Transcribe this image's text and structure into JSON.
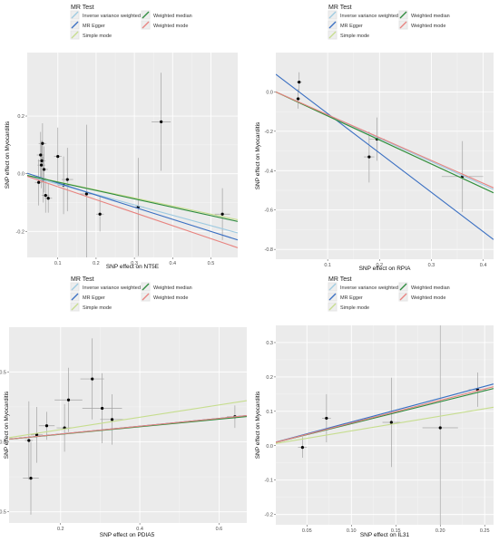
{
  "legend": {
    "title": "MR Test",
    "methods": [
      {
        "key": "ivw",
        "label": "Inverse variance weighted",
        "color": "#9ecae1"
      },
      {
        "key": "egger",
        "label": "MR Egger",
        "color": "#3a6fc2"
      },
      {
        "key": "simple",
        "label": "Simple mode",
        "color": "#c6dd8e"
      },
      {
        "key": "wmedian",
        "label": "Weighted median",
        "color": "#2e8b3e"
      },
      {
        "key": "wmode",
        "label": "Weighted mode",
        "color": "#e8837f"
      }
    ]
  },
  "chart_data": [
    {
      "type": "scatter",
      "xlabel": "SNP effect on NT5E",
      "ylabel": "SNP effect on Myocarditis",
      "xlim": [
        0.02,
        0.57
      ],
      "ylim": [
        -0.29,
        0.42
      ],
      "xticks": [
        {
          "v": 0.1,
          "label": "0.1"
        },
        {
          "v": 0.2,
          "label": "0.2"
        },
        {
          "v": 0.3,
          "label": "0.3"
        },
        {
          "v": 0.4,
          "label": "0.4"
        },
        {
          "v": 0.5,
          "label": "0.5"
        }
      ],
      "yticks": [
        {
          "v": -0.2,
          "label": "-0.2"
        },
        {
          "v": 0.0,
          "label": "0.0"
        },
        {
          "v": 0.2,
          "label": "0.2"
        }
      ],
      "points": [
        {
          "x": 0.05,
          "y": -0.03,
          "xerr": 0.01,
          "yerr": 0.08
        },
        {
          "x": 0.055,
          "y": 0.065,
          "xerr": 0.01,
          "yerr": 0.08
        },
        {
          "x": 0.057,
          "y": 0.03,
          "xerr": 0.01,
          "yerr": 0.08
        },
        {
          "x": 0.058,
          "y": 0.045,
          "xerr": 0.01,
          "yerr": 0.07
        },
        {
          "x": 0.06,
          "y": 0.105,
          "xerr": 0.01,
          "yerr": 0.07
        },
        {
          "x": 0.062,
          "y": -0.02,
          "xerr": 0.01,
          "yerr": 0.08
        },
        {
          "x": 0.064,
          "y": 0.015,
          "xerr": 0.01,
          "yerr": 0.08
        },
        {
          "x": 0.068,
          "y": -0.075,
          "xerr": 0.01,
          "yerr": 0.06
        },
        {
          "x": 0.075,
          "y": -0.085,
          "xerr": 0.01,
          "yerr": 0.05
        },
        {
          "x": 0.1,
          "y": 0.06,
          "xerr": 0.01,
          "yerr": 0.1
        },
        {
          "x": 0.115,
          "y": -0.04,
          "xerr": 0.015,
          "yerr": 0.1
        },
        {
          "x": 0.125,
          "y": -0.02,
          "xerr": 0.015,
          "yerr": 0.11
        },
        {
          "x": 0.175,
          "y": -0.07,
          "xerr": 0.02,
          "yerr": 0.24
        },
        {
          "x": 0.21,
          "y": -0.14,
          "xerr": 0.01,
          "yerr": 0.06
        },
        {
          "x": 0.31,
          "y": -0.115,
          "xerr": 0.015,
          "yerr": 0.17
        },
        {
          "x": 0.37,
          "y": 0.18,
          "xerr": 0.025,
          "yerr": 0.17
        },
        {
          "x": 0.53,
          "y": -0.14,
          "xerr": 0.02,
          "yerr": 0.09
        }
      ],
      "lines": [
        {
          "method": "ivw",
          "slope": -0.36
        },
        {
          "method": "egger",
          "slope": -0.42,
          "intercept": 0.01
        },
        {
          "method": "simple",
          "slope": -0.28
        },
        {
          "method": "wmedian",
          "slope": -0.29
        },
        {
          "method": "wmode",
          "slope": -0.45
        }
      ]
    },
    {
      "type": "scatter",
      "xlabel": "SNP effect on RPIA",
      "ylabel": "SNP effect on Myocarditis",
      "xlim": [
        0.0,
        0.42
      ],
      "ylim": [
        -0.85,
        0.2
      ],
      "xticks": [
        {
          "v": 0.1,
          "label": "0.1"
        },
        {
          "v": 0.2,
          "label": "0.2"
        },
        {
          "v": 0.3,
          "label": "0.3"
        },
        {
          "v": 0.4,
          "label": "0.4"
        }
      ],
      "yticks": [
        {
          "v": -0.8,
          "label": "-0.8"
        },
        {
          "v": -0.6,
          "label": "-0.6"
        },
        {
          "v": -0.4,
          "label": "-0.4"
        },
        {
          "v": -0.2,
          "label": "-0.2"
        },
        {
          "v": 0.0,
          "label": "0.0"
        }
      ],
      "points": [
        {
          "x": 0.045,
          "y": 0.05,
          "xerr": 0.005,
          "yerr": 0.05
        },
        {
          "x": 0.043,
          "y": -0.035,
          "xerr": 0.005,
          "yerr": 0.05
        },
        {
          "x": 0.18,
          "y": -0.33,
          "xerr": 0.01,
          "yerr": 0.13
        },
        {
          "x": 0.195,
          "y": -0.24,
          "xerr": 0.015,
          "yerr": 0.11
        },
        {
          "x": 0.36,
          "y": -0.43,
          "xerr": 0.04,
          "yerr": 0.18
        }
      ],
      "lines": [
        {
          "method": "ivw",
          "slope": -1.18
        },
        {
          "method": "egger",
          "slope": -2.0,
          "intercept": 0.09
        },
        {
          "method": "simple",
          "slope": -1.22
        },
        {
          "method": "wmedian",
          "slope": -1.22
        },
        {
          "method": "wmode",
          "slope": -1.16
        }
      ]
    },
    {
      "type": "scatter",
      "xlabel": "SNP effect on PDIA5",
      "ylabel": "SNP effect on Myocarditis",
      "xlim": [
        0.07,
        0.67
      ],
      "ylim": [
        -0.58,
        0.82
      ],
      "xticks": [
        {
          "v": 0.2,
          "label": "0.2"
        },
        {
          "v": 0.4,
          "label": "0.4"
        },
        {
          "v": 0.6,
          "label": "0.6"
        }
      ],
      "yticks": [
        {
          "v": -0.5,
          "label": "-0.5"
        },
        {
          "v": 0.0,
          "label": "0.0"
        },
        {
          "v": 0.5,
          "label": "0.5"
        }
      ],
      "points": [
        {
          "x": 0.12,
          "y": 0.01,
          "xerr": 0.01,
          "yerr": 0.28
        },
        {
          "x": 0.125,
          "y": -0.26,
          "xerr": 0.02,
          "yerr": 0.26
        },
        {
          "x": 0.14,
          "y": 0.05,
          "xerr": 0.015,
          "yerr": 0.2
        },
        {
          "x": 0.165,
          "y": 0.115,
          "xerr": 0.02,
          "yerr": 0.1
        },
        {
          "x": 0.21,
          "y": 0.1,
          "xerr": 0.02,
          "yerr": 0.17
        },
        {
          "x": 0.22,
          "y": 0.3,
          "xerr": 0.035,
          "yerr": 0.23
        },
        {
          "x": 0.28,
          "y": 0.45,
          "xerr": 0.03,
          "yerr": 0.29
        },
        {
          "x": 0.305,
          "y": 0.24,
          "xerr": 0.05,
          "yerr": 0.25
        },
        {
          "x": 0.33,
          "y": 0.16,
          "xerr": 0.03,
          "yerr": 0.18
        },
        {
          "x": 0.64,
          "y": 0.18,
          "xerr": 0.02,
          "yerr": 0.08
        }
      ],
      "lines": [
        {
          "method": "ivw",
          "slope": 0.28
        },
        {
          "method": "egger",
          "slope": 0.28,
          "intercept": 0.0
        },
        {
          "method": "simple",
          "slope": 0.44
        },
        {
          "method": "wmedian",
          "slope": 0.27
        },
        {
          "method": "wmode",
          "slope": 0.28
        }
      ]
    },
    {
      "type": "scatter",
      "xlabel": "SNP effect on IL31",
      "ylabel": "SNP effect on Myocarditis",
      "xlim": [
        0.015,
        0.26
      ],
      "ylim": [
        -0.23,
        0.35
      ],
      "xticks": [
        {
          "v": 0.05,
          "label": "0.05"
        },
        {
          "v": 0.1,
          "label": "0.10"
        },
        {
          "v": 0.15,
          "label": "0.15"
        },
        {
          "v": 0.2,
          "label": "0.20"
        },
        {
          "v": 0.25,
          "label": "0.25"
        }
      ],
      "yticks": [
        {
          "v": -0.2,
          "label": "-0.2"
        },
        {
          "v": -0.1,
          "label": "-0.1"
        },
        {
          "v": 0.0,
          "label": "0.0"
        },
        {
          "v": 0.1,
          "label": "0.1"
        },
        {
          "v": 0.2,
          "label": "0.2"
        },
        {
          "v": 0.3,
          "label": "0.3"
        }
      ],
      "points": [
        {
          "x": 0.045,
          "y": -0.005,
          "xerr": 0.005,
          "yerr": 0.03
        },
        {
          "x": 0.072,
          "y": 0.08,
          "xerr": 0.005,
          "yerr": 0.07
        },
        {
          "x": 0.145,
          "y": 0.068,
          "xerr": 0.01,
          "yerr": 0.13
        },
        {
          "x": 0.2,
          "y": 0.052,
          "xerr": 0.02,
          "yerr": 0.32
        },
        {
          "x": 0.242,
          "y": 0.163,
          "xerr": 0.01,
          "yerr": 0.05
        }
      ],
      "lines": [
        {
          "method": "ivw",
          "slope": 0.69
        },
        {
          "method": "egger",
          "slope": 0.69,
          "intercept": 0.0
        },
        {
          "method": "simple",
          "slope": 0.43
        },
        {
          "method": "wmedian",
          "slope": 0.64
        },
        {
          "method": "wmode",
          "slope": 0.66
        }
      ]
    }
  ]
}
